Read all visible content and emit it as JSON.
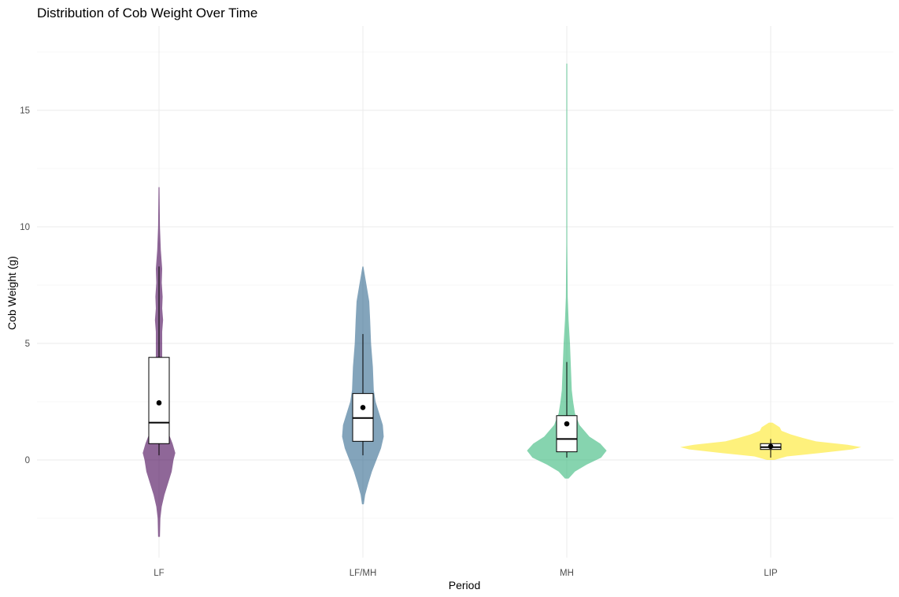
{
  "chart_data": {
    "type": "violin",
    "title": "Distribution of Cob Weight Over Time",
    "xlabel": "Period",
    "ylabel": "Cob Weight (g)",
    "categories": [
      "LF",
      "LF/MH",
      "MH",
      "LIP"
    ],
    "ylim": [
      -4.2,
      18.7
    ],
    "yticks": [
      0,
      5,
      10,
      15
    ],
    "grid": true,
    "legend": "none",
    "colors": {
      "LF": "#440154",
      "LF/MH": "#31688e",
      "MH": "#35b779",
      "LIP": "#fde725"
    },
    "violin_opacity": 0.6,
    "groups": [
      {
        "name": "LF",
        "box": {
          "q1": 0.7,
          "median": 1.6,
          "q3": 4.4,
          "whisker_low": 0.2,
          "whisker_high": 8.3
        },
        "mean": 2.45,
        "violin_range": [
          -3.3,
          11.7
        ],
        "density": [
          [
            -3.3,
            0.01
          ],
          [
            -2.5,
            0.015
          ],
          [
            -2.0,
            0.03
          ],
          [
            -1.5,
            0.06
          ],
          [
            -1.0,
            0.1
          ],
          [
            -0.5,
            0.14
          ],
          [
            0,
            0.16
          ],
          [
            0.3,
            0.18
          ],
          [
            0.7,
            0.15
          ],
          [
            1.2,
            0.1
          ],
          [
            1.8,
            0.07
          ],
          [
            2.5,
            0.05
          ],
          [
            3.5,
            0.04
          ],
          [
            4.5,
            0.035
          ],
          [
            5.5,
            0.035
          ],
          [
            6.0,
            0.045
          ],
          [
            6.5,
            0.035
          ],
          [
            7.0,
            0.04
          ],
          [
            7.6,
            0.03
          ],
          [
            8.2,
            0.035
          ],
          [
            9.0,
            0.02
          ],
          [
            10.0,
            0.01
          ],
          [
            11.7,
            0.005
          ]
        ]
      },
      {
        "name": "LF/MH",
        "box": {
          "q1": 0.8,
          "median": 1.8,
          "q3": 2.85,
          "whisker_low": 0.2,
          "whisker_high": 5.4
        },
        "mean": 2.25,
        "violin_range": [
          -1.9,
          8.3
        ],
        "density": [
          [
            -1.9,
            0.01
          ],
          [
            -1.5,
            0.025
          ],
          [
            -1.0,
            0.06
          ],
          [
            -0.5,
            0.1
          ],
          [
            0,
            0.15
          ],
          [
            0.5,
            0.2
          ],
          [
            1.0,
            0.23
          ],
          [
            1.5,
            0.22
          ],
          [
            2.0,
            0.18
          ],
          [
            2.5,
            0.14
          ],
          [
            3.0,
            0.12
          ],
          [
            4.0,
            0.11
          ],
          [
            5.0,
            0.09
          ],
          [
            6.0,
            0.08
          ],
          [
            6.8,
            0.07
          ],
          [
            7.5,
            0.04
          ],
          [
            8.3,
            0.005
          ]
        ]
      },
      {
        "name": "MH",
        "box": {
          "q1": 0.35,
          "median": 0.9,
          "q3": 1.9,
          "whisker_low": 0.1,
          "whisker_high": 4.2
        },
        "mean": 1.55,
        "violin_range": [
          -0.8,
          17.0
        ],
        "density": [
          [
            -0.8,
            0.02
          ],
          [
            -0.5,
            0.09
          ],
          [
            -0.2,
            0.22
          ],
          [
            0.1,
            0.38
          ],
          [
            0.4,
            0.44
          ],
          [
            0.7,
            0.37
          ],
          [
            1.0,
            0.25
          ],
          [
            1.5,
            0.14
          ],
          [
            2.0,
            0.09
          ],
          [
            2.5,
            0.07
          ],
          [
            3.0,
            0.055
          ],
          [
            4.0,
            0.045
          ],
          [
            5.0,
            0.035
          ],
          [
            6.0,
            0.02
          ],
          [
            7.0,
            0.01
          ],
          [
            8.0,
            0.008
          ],
          [
            9.3,
            0.005
          ],
          [
            10.5,
            0.003
          ],
          [
            12.0,
            0.003
          ],
          [
            13.5,
            0.002
          ],
          [
            15.0,
            0.002
          ],
          [
            16.0,
            0.003
          ],
          [
            17.0,
            0.002
          ]
        ]
      },
      {
        "name": "LIP",
        "box": {
          "q1": 0.45,
          "median": 0.55,
          "q3": 0.7,
          "whisker_low": 0.1,
          "whisker_high": 0.9
        },
        "mean": 0.58,
        "violin_range": [
          0.0,
          1.6
        ],
        "density": [
          [
            0,
            0.04
          ],
          [
            0.15,
            0.18
          ],
          [
            0.3,
            0.55
          ],
          [
            0.45,
            0.9
          ],
          [
            0.55,
            1.0
          ],
          [
            0.65,
            0.85
          ],
          [
            0.8,
            0.5
          ],
          [
            0.95,
            0.35
          ],
          [
            1.1,
            0.22
          ],
          [
            1.25,
            0.12
          ],
          [
            1.4,
            0.1
          ],
          [
            1.6,
            0.02
          ]
        ]
      }
    ]
  }
}
